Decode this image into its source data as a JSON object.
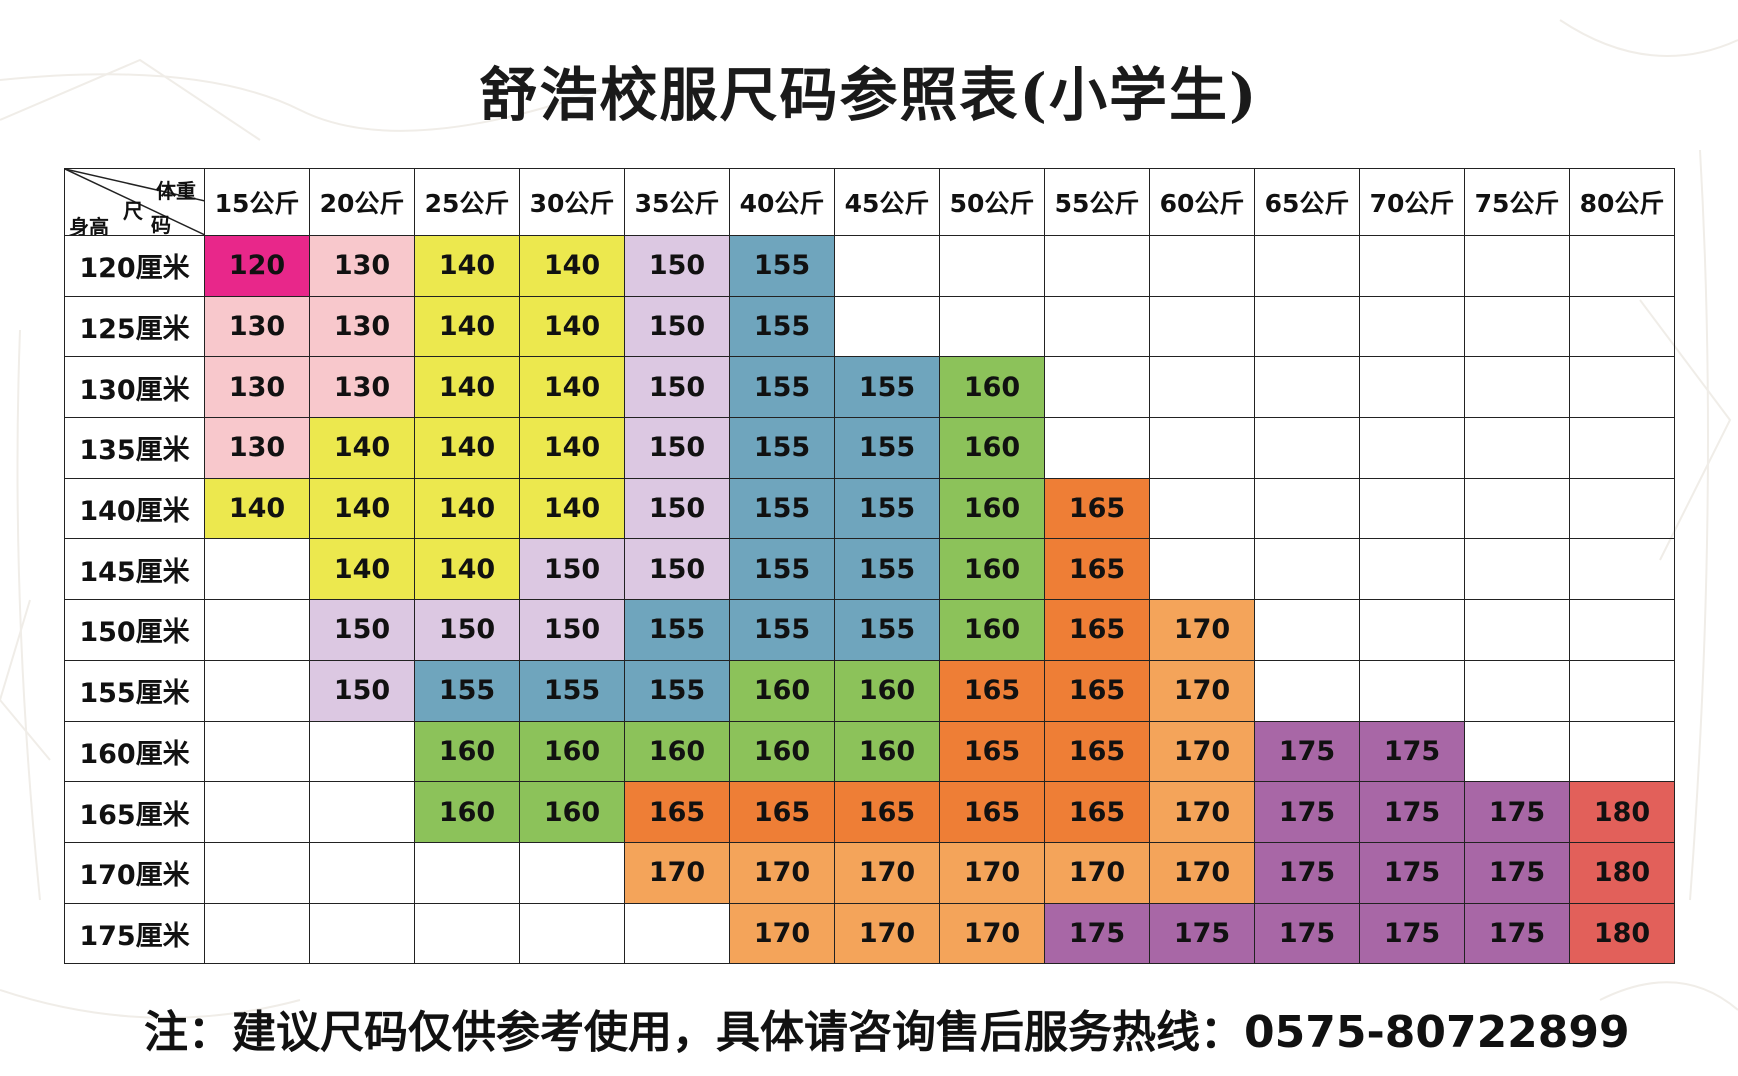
{
  "title": "舒浩校服尺码参照表(小学生)",
  "corner": {
    "weight_label": "体重",
    "size_label_1": "尺",
    "size_label_2": "码",
    "height_label": "身高"
  },
  "weights": [
    "15公斤",
    "20公斤",
    "25公斤",
    "30公斤",
    "35公斤",
    "40公斤",
    "45公斤",
    "50公斤",
    "55公斤",
    "60公斤",
    "65公斤",
    "70公斤",
    "75公斤",
    "80公斤"
  ],
  "heights": [
    "120厘米",
    "125厘米",
    "130厘米",
    "135厘米",
    "140厘米",
    "145厘米",
    "150厘米",
    "155厘米",
    "160厘米",
    "165厘米",
    "170厘米",
    "175厘米"
  ],
  "rows": [
    [
      "120",
      "130",
      "140",
      "140",
      "150",
      "155",
      "",
      "",
      "",
      "",
      "",
      "",
      "",
      ""
    ],
    [
      "130",
      "130",
      "140",
      "140",
      "150",
      "155",
      "",
      "",
      "",
      "",
      "",
      "",
      "",
      ""
    ],
    [
      "130",
      "130",
      "140",
      "140",
      "150",
      "155",
      "155",
      "160",
      "",
      "",
      "",
      "",
      "",
      ""
    ],
    [
      "130",
      "140",
      "140",
      "140",
      "150",
      "155",
      "155",
      "160",
      "",
      "",
      "",
      "",
      "",
      ""
    ],
    [
      "140",
      "140",
      "140",
      "140",
      "150",
      "155",
      "155",
      "160",
      "165",
      "",
      "",
      "",
      "",
      ""
    ],
    [
      "",
      "140",
      "140",
      "150",
      "150",
      "155",
      "155",
      "160",
      "165",
      "",
      "",
      "",
      "",
      ""
    ],
    [
      "",
      "150",
      "150",
      "150",
      "155",
      "155",
      "155",
      "160",
      "165",
      "170",
      "",
      "",
      "",
      ""
    ],
    [
      "",
      "150",
      "155",
      "155",
      "155",
      "160",
      "160",
      "165",
      "165",
      "170",
      "",
      "",
      "",
      ""
    ],
    [
      "",
      "",
      "160",
      "160",
      "160",
      "160",
      "160",
      "165",
      "165",
      "170",
      "175",
      "175",
      "",
      ""
    ],
    [
      "",
      "",
      "160",
      "160",
      "165",
      "165",
      "165",
      "165",
      "165",
      "170",
      "175",
      "175",
      "175",
      "180"
    ],
    [
      "",
      "",
      "",
      "",
      "170",
      "170",
      "170",
      "170",
      "170",
      "170",
      "175",
      "175",
      "175",
      "180"
    ],
    [
      "",
      "",
      "",
      "",
      "",
      "170",
      "170",
      "170",
      "175",
      "175",
      "175",
      "175",
      "175",
      "180"
    ]
  ],
  "size_colors": {
    "120": "#e8278a",
    "130": "#f8c8cc",
    "140": "#ece84e",
    "150": "#dcc8e2",
    "155": "#6fa5bd",
    "160": "#8cc25a",
    "165": "#ee7e36",
    "170": "#f4a45a",
    "175": "#a867a6",
    "180": "#e2605a"
  },
  "note": "注：建议尺码仅供参考使用，具体请咨询售后服务热线：0575-80722899"
}
